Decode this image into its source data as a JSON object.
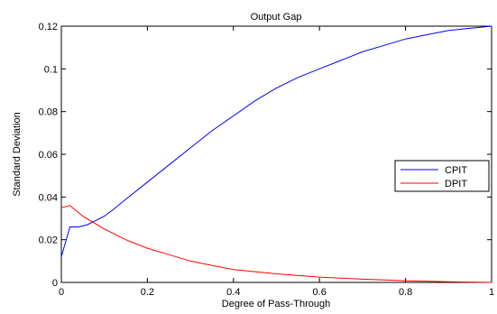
{
  "chart_data": {
    "type": "line",
    "title": "Output Gap",
    "xlabel": "Degree of Pass-Through",
    "ylabel": "Standard Deviation",
    "xlim": [
      0,
      1
    ],
    "ylim": [
      0,
      0.12
    ],
    "xticks": [
      "0",
      "0.2",
      "0.4",
      "0.6",
      "0.8",
      "1"
    ],
    "yticks": [
      "0",
      "0.02",
      "0.04",
      "0.06",
      "0.08",
      "0.1",
      "0.12"
    ],
    "grid": false,
    "legend_position": "right",
    "series": [
      {
        "name": "CPIT",
        "color": "#0000ff",
        "x": [
          0,
          0.02,
          0.04,
          0.06,
          0.08,
          0.1,
          0.12,
          0.15,
          0.2,
          0.25,
          0.3,
          0.35,
          0.4,
          0.45,
          0.5,
          0.55,
          0.6,
          0.65,
          0.7,
          0.75,
          0.8,
          0.85,
          0.9,
          0.95,
          1.0
        ],
        "y": [
          0.012,
          0.026,
          0.026,
          0.027,
          0.029,
          0.031,
          0.034,
          0.039,
          0.047,
          0.055,
          0.063,
          0.071,
          0.078,
          0.085,
          0.091,
          0.096,
          0.1,
          0.104,
          0.108,
          0.111,
          0.114,
          0.116,
          0.118,
          0.119,
          0.12
        ]
      },
      {
        "name": "DPIT",
        "color": "#ff0000",
        "x": [
          0,
          0.02,
          0.05,
          0.1,
          0.15,
          0.2,
          0.25,
          0.3,
          0.35,
          0.4,
          0.5,
          0.6,
          0.7,
          0.8,
          0.9,
          1.0
        ],
        "y": [
          0.035,
          0.036,
          0.031,
          0.025,
          0.02,
          0.016,
          0.013,
          0.01,
          0.008,
          0.006,
          0.004,
          0.0025,
          0.0015,
          0.0008,
          0.0003,
          0.0
        ]
      }
    ]
  }
}
